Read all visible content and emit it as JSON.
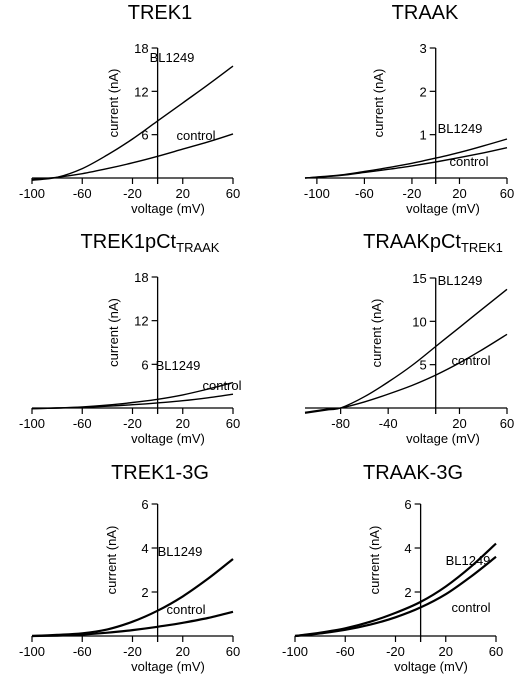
{
  "chart_data": [
    {
      "type": "line",
      "title": "TREK1",
      "xlabel": "voltage (mV)",
      "ylabel": "current (nA)",
      "xlim": [
        -100,
        60
      ],
      "ylim": [
        0,
        18
      ],
      "xticks": [
        -100,
        -60,
        -20,
        20,
        60
      ],
      "xtick_labels": [
        "-100",
        "-60",
        "-20",
        "20",
        "60"
      ],
      "yticks": [
        6,
        12,
        18
      ],
      "ytick_labels": [
        "6",
        "12",
        "18"
      ],
      "series": [
        {
          "name": "BL1249",
          "x": [
            -100,
            -80,
            -60,
            -40,
            -20,
            0,
            20,
            40,
            60
          ],
          "y": [
            -0.3,
            0.1,
            1.3,
            3.2,
            5.4,
            7.9,
            10.4,
            12.9,
            15.5
          ]
        },
        {
          "name": "control",
          "x": [
            -100,
            -80,
            -60,
            -40,
            -20,
            0,
            20,
            40,
            60
          ],
          "y": [
            -0.2,
            0.1,
            0.6,
            1.3,
            2.1,
            3.0,
            4.0,
            5.0,
            6.1
          ]
        }
      ]
    },
    {
      "type": "line",
      "title": "TRAAK",
      "xlabel": "voltage (mV)",
      "ylabel": "current (nA)",
      "xlim": [
        -110,
        60
      ],
      "ylim": [
        0,
        3
      ],
      "xticks": [
        -100,
        -60,
        -20,
        20,
        60
      ],
      "xtick_labels": [
        "-100",
        "-60",
        "-20",
        "20",
        "60"
      ],
      "yticks": [
        1,
        2,
        3
      ],
      "ytick_labels": [
        "1",
        "2",
        "3"
      ],
      "series": [
        {
          "name": "BL1249",
          "x": [
            -110,
            -80,
            -60,
            -40,
            -20,
            0,
            20,
            40,
            60
          ],
          "y": [
            0.0,
            0.07,
            0.15,
            0.24,
            0.34,
            0.46,
            0.59,
            0.74,
            0.9
          ]
        },
        {
          "name": "control",
          "x": [
            -110,
            -80,
            -60,
            -40,
            -20,
            0,
            20,
            40,
            60
          ],
          "y": [
            0.0,
            0.06,
            0.13,
            0.2,
            0.28,
            0.37,
            0.47,
            0.58,
            0.7
          ]
        }
      ]
    },
    {
      "type": "line",
      "title": "TREK1pCt",
      "title_sub": "TRAAK",
      "xlabel": "voltage (mV)",
      "ylabel": "current (nA)",
      "xlim": [
        -100,
        60
      ],
      "ylim": [
        0,
        18
      ],
      "xticks": [
        -100,
        -60,
        -20,
        20,
        60
      ],
      "xtick_labels": [
        "-100",
        "-60",
        "-20",
        "20",
        "60"
      ],
      "yticks": [
        6,
        12,
        18
      ],
      "ytick_labels": [
        "6",
        "12",
        "18"
      ],
      "series": [
        {
          "name": "BL1249",
          "x": [
            -100,
            -80,
            -60,
            -40,
            -20,
            0,
            20,
            40,
            60
          ],
          "y": [
            -0.1,
            0.0,
            0.15,
            0.4,
            0.75,
            1.2,
            1.8,
            2.6,
            3.5
          ]
        },
        {
          "name": "control",
          "x": [
            -100,
            -80,
            -60,
            -40,
            -20,
            0,
            20,
            40,
            60
          ],
          "y": [
            -0.1,
            0.0,
            0.1,
            0.25,
            0.45,
            0.7,
            1.0,
            1.4,
            1.9
          ]
        }
      ]
    },
    {
      "type": "line",
      "title": "TRAAKpCt",
      "title_sub": "TREK1",
      "xlabel": "voltage (mV)",
      "ylabel": "current (nA)",
      "xlim": [
        -110,
        60
      ],
      "ylim": [
        0,
        15
      ],
      "xticks": [
        -80,
        -40,
        20,
        60
      ],
      "xtick_labels": [
        "-80",
        "-40",
        "20",
        "60"
      ],
      "yticks": [
        5,
        10,
        15
      ],
      "ytick_labels": [
        "5",
        "10",
        "15"
      ],
      "series": [
        {
          "name": "BL1249",
          "x": [
            -110,
            -90,
            -80,
            -60,
            -40,
            -20,
            0,
            20,
            40,
            60
          ],
          "y": [
            -0.6,
            -0.2,
            0.0,
            1.3,
            3.0,
            4.9,
            7.1,
            9.3,
            11.5,
            13.7
          ]
        },
        {
          "name": "control",
          "x": [
            -110,
            -90,
            -80,
            -60,
            -40,
            -20,
            0,
            20,
            40,
            60
          ],
          "y": [
            -0.5,
            -0.1,
            0.0,
            0.7,
            1.6,
            2.6,
            3.8,
            5.2,
            6.8,
            8.5
          ]
        }
      ]
    },
    {
      "type": "line",
      "title": "TREK1-3G",
      "xlabel": "voltage (mV)",
      "ylabel": "current (nA)",
      "xlim": [
        -100,
        60
      ],
      "ylim": [
        0,
        6
      ],
      "xticks": [
        -100,
        -60,
        -20,
        20,
        60
      ],
      "xtick_labels": [
        "-100",
        "-60",
        "-20",
        "20",
        "60"
      ],
      "yticks": [
        2,
        4,
        6
      ],
      "ytick_labels": [
        "2",
        "4",
        "6"
      ],
      "series": [
        {
          "name": "BL1249",
          "x": [
            -100,
            -80,
            -60,
            -40,
            -20,
            0,
            20,
            40,
            60
          ],
          "y": [
            0.0,
            0.05,
            0.12,
            0.3,
            0.65,
            1.15,
            1.8,
            2.6,
            3.5
          ]
        },
        {
          "name": "control",
          "x": [
            -100,
            -80,
            -60,
            -40,
            -20,
            0,
            20,
            40,
            60
          ],
          "y": [
            0.0,
            0.02,
            0.07,
            0.15,
            0.27,
            0.42,
            0.6,
            0.82,
            1.1
          ]
        }
      ]
    },
    {
      "type": "line",
      "title": "TRAAK-3G",
      "xlabel": "voltage (mV)",
      "ylabel": "current (nA)",
      "xlim": [
        -100,
        60
      ],
      "ylim": [
        0,
        6
      ],
      "xticks": [
        -100,
        -60,
        -20,
        20,
        60
      ],
      "xtick_labels": [
        "-100",
        "-60",
        "-20",
        "20",
        "60"
      ],
      "yticks": [
        2,
        4,
        6
      ],
      "ytick_labels": [
        "2",
        "4",
        "6"
      ],
      "series": [
        {
          "name": "BL1249",
          "x": [
            -100,
            -80,
            -60,
            -40,
            -20,
            0,
            20,
            40,
            60
          ],
          "y": [
            0.0,
            0.15,
            0.35,
            0.65,
            1.05,
            1.55,
            2.25,
            3.15,
            4.2
          ]
        },
        {
          "name": "control",
          "x": [
            -100,
            -80,
            -60,
            -40,
            -20,
            0,
            20,
            40,
            60
          ],
          "y": [
            0.0,
            0.12,
            0.28,
            0.52,
            0.85,
            1.3,
            1.9,
            2.7,
            3.6
          ]
        }
      ]
    }
  ]
}
